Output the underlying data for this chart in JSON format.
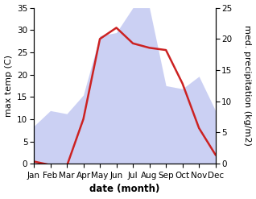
{
  "months": [
    "Jan",
    "Feb",
    "Mar",
    "Apr",
    "May",
    "Jun",
    "Jul",
    "Aug",
    "Sep",
    "Oct",
    "Nov",
    "Dec"
  ],
  "temperature": [
    0.5,
    -0.3,
    -0.5,
    10.0,
    28.0,
    30.5,
    27.0,
    26.0,
    25.5,
    18.0,
    8.0,
    2.0
  ],
  "precipitation": [
    6.0,
    8.5,
    8.0,
    11.0,
    20.5,
    21.0,
    25.0,
    25.0,
    12.5,
    12.0,
    14.0,
    8.5
  ],
  "temp_ylim": [
    0,
    35
  ],
  "precip_ylim": [
    0,
    25
  ],
  "temp_yticks": [
    0,
    5,
    10,
    15,
    20,
    25,
    30,
    35
  ],
  "precip_yticks": [
    0,
    5,
    10,
    15,
    20,
    25
  ],
  "fill_color": "#b0b8ee",
  "fill_alpha": 0.65,
  "line_color": "#cc2222",
  "line_width": 1.8,
  "xlabel": "date (month)",
  "ylabel_left": "max temp (C)",
  "ylabel_right": "med. precipitation (kg/m2)",
  "bg_color": "#ffffff",
  "xlabel_fontsize": 8.5,
  "ylabel_fontsize": 8,
  "tick_fontsize": 7.5
}
